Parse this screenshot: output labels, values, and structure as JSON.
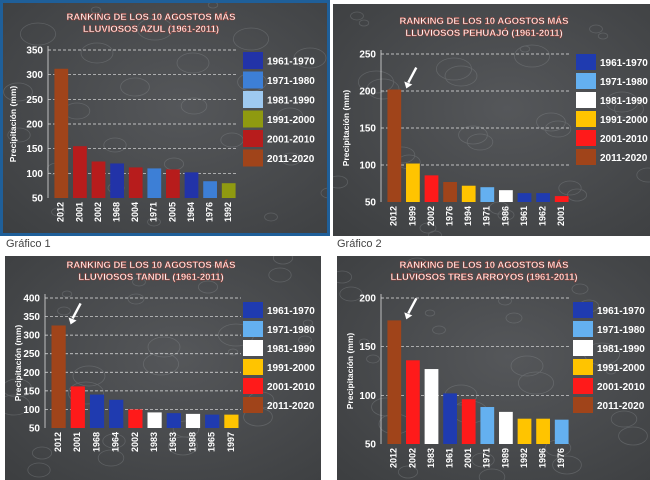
{
  "colors": {
    "bg_dark": "#3d3f41",
    "bg_dark2": "#55575a",
    "title_text": "#ffffff",
    "title_shadow": "#b03a2e",
    "axis_text": "#ffffff",
    "blue_frame": "#1f5f99",
    "white_frame": "#ffffff"
  },
  "captions": [
    "Gráfico 1",
    "Gráfico 2"
  ],
  "legend_periods": [
    "1961-1970",
    "1971-1980",
    "1981-1990",
    "1991-2000",
    "2001-2010",
    "2011-2020"
  ],
  "chart_data": [
    {
      "type": "bar",
      "title": "RANKING  DE LOS 10 AGOSTOS MÁS",
      "subtitle": "LLUVIOSOS AZUL  (1961-2011)",
      "ylabel": "Precipitación (mm)",
      "ylim": [
        50,
        350
      ],
      "yticks": [
        50,
        100,
        150,
        200,
        250,
        300,
        350
      ],
      "grid": true,
      "legend_position": "right",
      "legend_colors": [
        "#2233a8",
        "#3d7fd6",
        "#9ec9f0",
        "#8f9a10",
        "#b71c1c",
        "#a0441a"
      ],
      "categories": [
        "2012",
        "2001",
        "2002",
        "1968",
        "2004",
        "1971",
        "2005",
        "1964",
        "1976",
        "1992"
      ],
      "values": [
        312,
        155,
        124,
        120,
        112,
        110,
        108,
        102,
        84,
        80
      ],
      "bar_colors": [
        "#a0441a",
        "#b71c1c",
        "#b71c1c",
        "#2233a8",
        "#b71c1c",
        "#3d7fd6",
        "#b71c1c",
        "#2233a8",
        "#3d7fd6",
        "#8f9a10"
      ],
      "arrow_on_first": false
    },
    {
      "type": "bar",
      "title": "RANKING  DE LOS 10 AGOSTOS MÁS",
      "subtitle": "LLUVIOSOS  PEHUAJÓ  (1961-2011)",
      "ylabel": "Precipitación (mm)",
      "ylim": [
        50,
        250
      ],
      "yticks": [
        50,
        100,
        150,
        200,
        250
      ],
      "grid": true,
      "legend_position": "right",
      "legend_colors": [
        "#1f3bb0",
        "#64b0f0",
        "#ffffff",
        "#ffc400",
        "#ff1a1a",
        "#a0441a"
      ],
      "categories": [
        "2012",
        "1999",
        "2002",
        "1976",
        "1994",
        "1971",
        "1986",
        "1961",
        "1962",
        "2001"
      ],
      "values": [
        202,
        102,
        86,
        77,
        72,
        70,
        66,
        62,
        62,
        58
      ],
      "bar_colors": [
        "#a0441a",
        "#ffc400",
        "#ff1a1a",
        "#a0441a",
        "#ffc400",
        "#64b0f0",
        "#ffffff",
        "#1f3bb0",
        "#1f3bb0",
        "#ff1a1a"
      ],
      "arrow_on_first": true
    },
    {
      "type": "bar",
      "title": "RANKING  DE LOS 10 AGOSTOS MÁS",
      "subtitle": "LLUVIOSOS  TANDIL  (1961-2011)",
      "ylabel": "Precipitación (mm)",
      "ylim": [
        50,
        400
      ],
      "yticks": [
        50,
        100,
        150,
        200,
        250,
        300,
        350,
        400
      ],
      "grid": true,
      "legend_position": "right",
      "legend_colors": [
        "#1f3bb0",
        "#64b0f0",
        "#ffffff",
        "#ffc400",
        "#ff1a1a",
        "#a0441a"
      ],
      "categories": [
        "2012",
        "2001",
        "1968",
        "1964",
        "2002",
        "1983",
        "1963",
        "1988",
        "1965",
        "1997"
      ],
      "values": [
        326,
        162,
        140,
        126,
        100,
        92,
        90,
        88,
        86,
        86
      ],
      "bar_colors": [
        "#a0441a",
        "#ff1a1a",
        "#1f3bb0",
        "#1f3bb0",
        "#ff1a1a",
        "#ffffff",
        "#1f3bb0",
        "#ffffff",
        "#1f3bb0",
        "#ffc400"
      ],
      "arrow_on_first": true
    },
    {
      "type": "bar",
      "title": "RANKING  DE LOS 10 AGOSTOS MÁS",
      "subtitle": "LLUVIOSOS  TRES ARROYOS  (1961-2011)",
      "ylabel": "Precipitación (mm)",
      "ylim": [
        50,
        200
      ],
      "yticks": [
        50,
        100,
        150,
        200
      ],
      "grid": true,
      "legend_position": "right",
      "legend_colors": [
        "#1f3bb0",
        "#64b0f0",
        "#ffffff",
        "#ffc400",
        "#ff1a1a",
        "#a0441a"
      ],
      "categories": [
        "2012",
        "2002",
        "1983",
        "1961",
        "2001",
        "1971",
        "1989",
        "1992",
        "1996",
        "1976"
      ],
      "values": [
        177,
        136,
        127,
        102,
        96,
        88,
        83,
        76,
        76,
        75
      ],
      "bar_colors": [
        "#a0441a",
        "#ff1a1a",
        "#ffffff",
        "#1f3bb0",
        "#ff1a1a",
        "#64b0f0",
        "#ffffff",
        "#ffc400",
        "#ffc400",
        "#64b0f0"
      ],
      "arrow_on_first": true
    }
  ]
}
